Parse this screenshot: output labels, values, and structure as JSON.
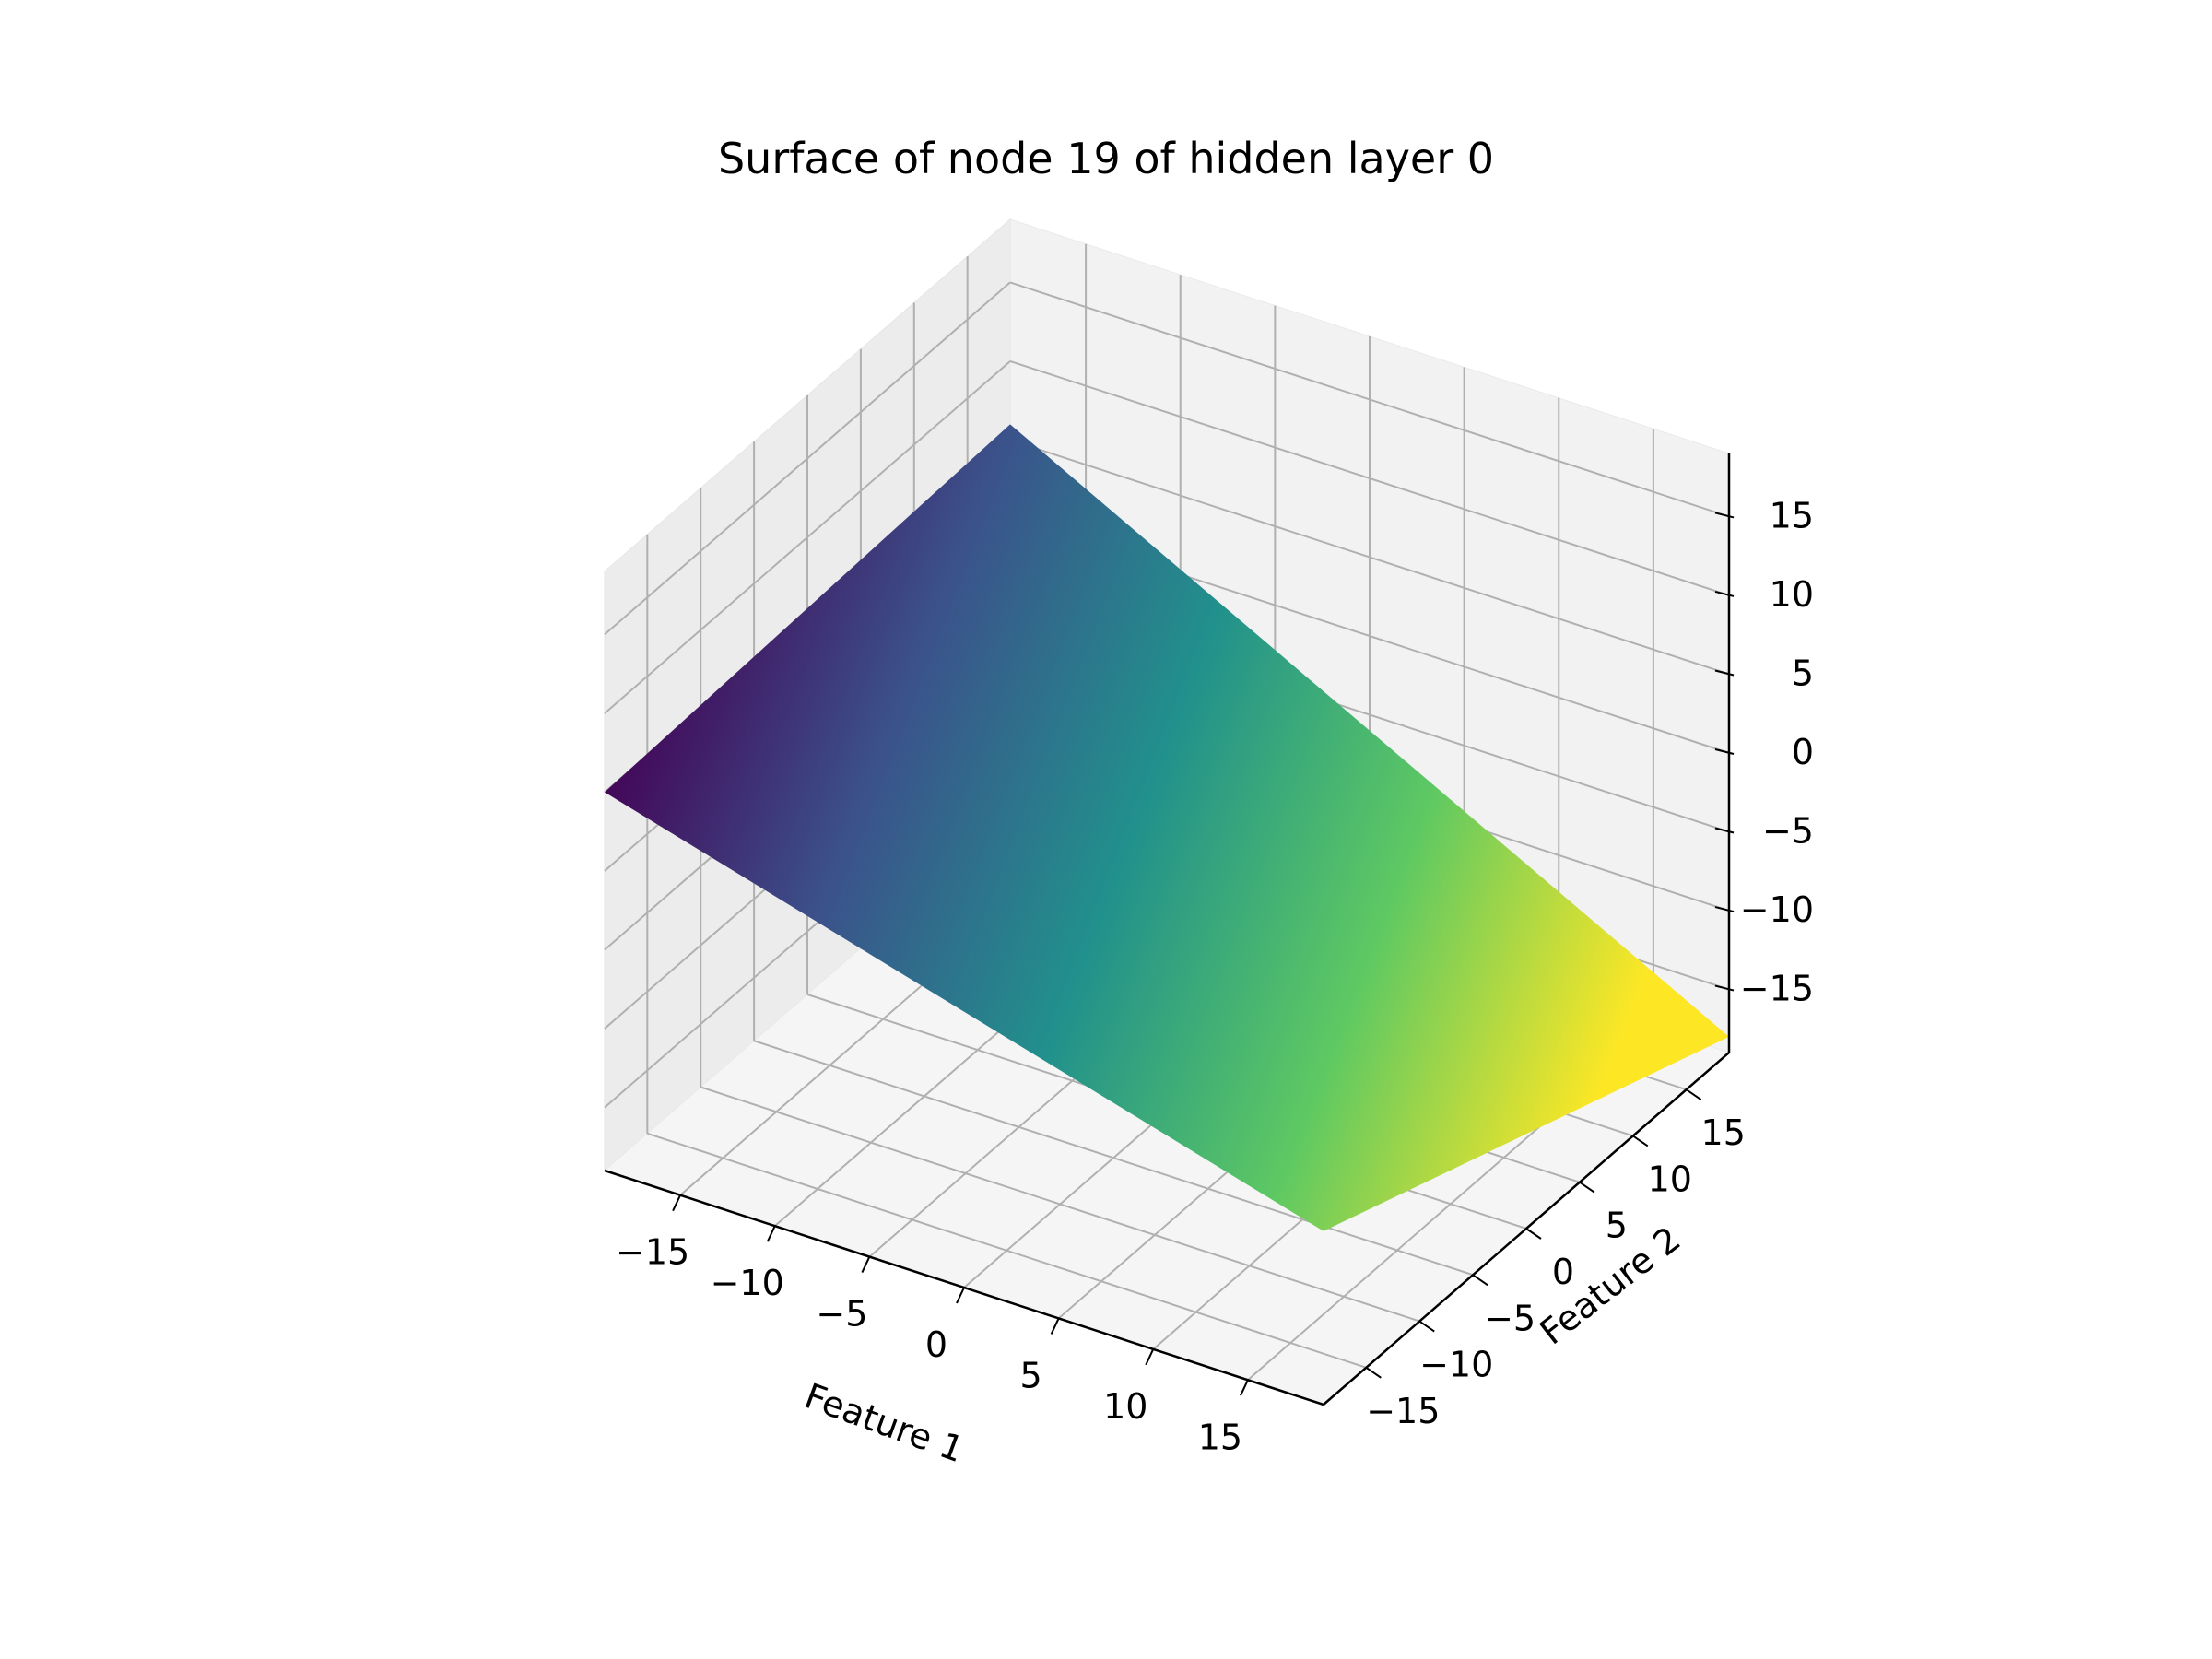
{
  "chart_data": {
    "type": "surface",
    "title": "Surface of node 19 of hidden layer 0",
    "xlabel": "Feature 1",
    "ylabel": "Feature 2",
    "zlabel": "",
    "xlim": [
      -19,
      19
    ],
    "ylim": [
      -19,
      19
    ],
    "zlim": [
      -19,
      19
    ],
    "xticks": [
      -15,
      -10,
      -5,
      0,
      5,
      10,
      15
    ],
    "yticks": [
      -15,
      -10,
      -5,
      0,
      5,
      10,
      15
    ],
    "zticks": [
      -15,
      -10,
      -5,
      0,
      5,
      10,
      15
    ],
    "xtick_labels": [
      "−15",
      "−10",
      "−5",
      "0",
      "5",
      "10",
      "15"
    ],
    "ytick_labels": [
      "−15",
      "−10",
      "−5",
      "0",
      "5",
      "10",
      "15"
    ],
    "ztick_labels": [
      "−15",
      "−10",
      "−5",
      "0",
      "5",
      "10",
      "15"
    ],
    "grid": true,
    "colormap": "viridis",
    "colormap_stops": [
      "#440154",
      "#3b528b",
      "#21918c",
      "#5ec962",
      "#fde725"
    ],
    "pane_color": "#f2f2f2",
    "grid_color": "#b0b0b0",
    "surface": {
      "x_range": [
        -19,
        19
      ],
      "y_range": [
        -19,
        19
      ],
      "corners": [
        {
          "x": -19,
          "y": -19,
          "z": 5.0
        },
        {
          "x": 19,
          "y": -19,
          "z": -8.0
        },
        {
          "x": 19,
          "y": 19,
          "z": -18.0
        },
        {
          "x": -19,
          "y": 19,
          "z": 6.0
        }
      ]
    }
  }
}
